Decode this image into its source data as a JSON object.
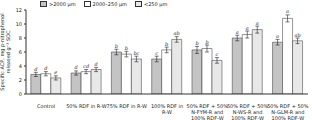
{
  "chart_data": {
    "type": "bar",
    "y_label": "Specific ACP, mg p-nitrophenol released g⁻¹ SOC",
    "categories": [
      "Control",
      "50% RDF in R-W",
      "75% RDF in R-W",
      "100% RDF in R-W",
      "50% RDF + 50% N-FYM-R and 100% RDF-W",
      "50% RDF + 50% N-WS-R and 100% RDF-W",
      "50% RDF + 50% N-GLM-R and 100% RDF-W"
    ],
    "series": [
      {
        "name": ">2000 μm",
        "color": "#c4c4c4",
        "values": [
          2.8,
          3.0,
          6.0,
          5.0,
          6.3,
          8.0,
          7.4
        ],
        "errors": [
          0.3,
          0.3,
          0.4,
          0.4,
          0.5,
          0.4,
          0.4
        ],
        "letters": [
          "d",
          "d",
          "b",
          "c",
          "b",
          "a",
          "a"
        ]
      },
      {
        "name": "2000–250 μm",
        "color": "#ffffff",
        "values": [
          2.9,
          3.2,
          5.7,
          6.3,
          6.5,
          8.5,
          10.8
        ],
        "errors": [
          0.3,
          0.3,
          0.4,
          0.4,
          0.5,
          0.5,
          0.5
        ],
        "letters": [
          "d",
          "cd",
          "b",
          "b",
          "b",
          "a",
          "a"
        ]
      },
      {
        "name": "<250 μm",
        "color": "#e8e8e8",
        "values": [
          2.3,
          3.5,
          5.0,
          7.8,
          4.8,
          9.2,
          7.6
        ],
        "errors": [
          0.3,
          0.3,
          0.4,
          0.4,
          0.4,
          0.5,
          0.4
        ],
        "letters": [
          "e",
          "d",
          "bc",
          "ab",
          "c",
          "a",
          "ab"
        ]
      }
    ],
    "ylim": [
      0,
      12
    ],
    "yticks": [
      0,
      2,
      4,
      6,
      8,
      10,
      12
    ]
  }
}
